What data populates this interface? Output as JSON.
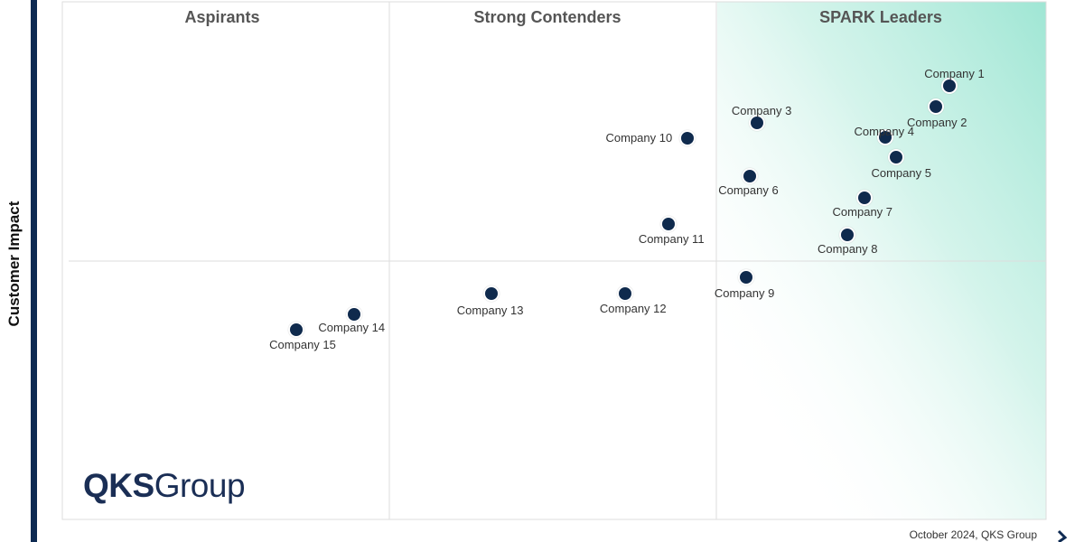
{
  "chart_data": {
    "type": "scatter",
    "title": "",
    "ylabel": "Customer Impact",
    "xlabel": "",
    "xlim": [
      0,
      100
    ],
    "ylim": [
      0,
      100
    ],
    "quadrants": [
      "Aspirants",
      "Strong Contenders",
      "SPARK Leaders"
    ],
    "points": [
      {
        "label": "Company 1",
        "x": 90.2,
        "y": 83.8
      },
      {
        "label": "Company 2",
        "x": 88.8,
        "y": 79.8
      },
      {
        "label": "Company 3",
        "x": 70.6,
        "y": 76.7
      },
      {
        "label": "Company 4",
        "x": 83.7,
        "y": 73.8
      },
      {
        "label": "Company 5",
        "x": 84.8,
        "y": 69.9
      },
      {
        "label": "Company 6",
        "x": 69.9,
        "y": 66.3
      },
      {
        "label": "Company 10",
        "x": 63.5,
        "y": 73.6
      },
      {
        "label": "Company 7",
        "x": 81.5,
        "y": 62.2
      },
      {
        "label": "Company 8",
        "x": 79.8,
        "y": 55.0
      },
      {
        "label": "Company 11",
        "x": 61.6,
        "y": 57.0
      },
      {
        "label": "Company 9",
        "x": 69.5,
        "y": 46.8
      },
      {
        "label": "Company 12",
        "x": 57.2,
        "y": 43.6
      },
      {
        "label": "Company 13",
        "x": 43.6,
        "y": 43.6
      },
      {
        "label": "Company 14",
        "x": 29.7,
        "y": 39.7
      },
      {
        "label": "Company 15",
        "x": 23.8,
        "y": 36.6
      }
    ]
  },
  "brand": {
    "logo_bold": "QKS",
    "logo_regular": "Group"
  },
  "footer": "October 2024, QKS Group",
  "colors": {
    "point": "#0f2a4d",
    "leader_gradient": "#9fe6d4",
    "axis": "#0e2a52"
  }
}
